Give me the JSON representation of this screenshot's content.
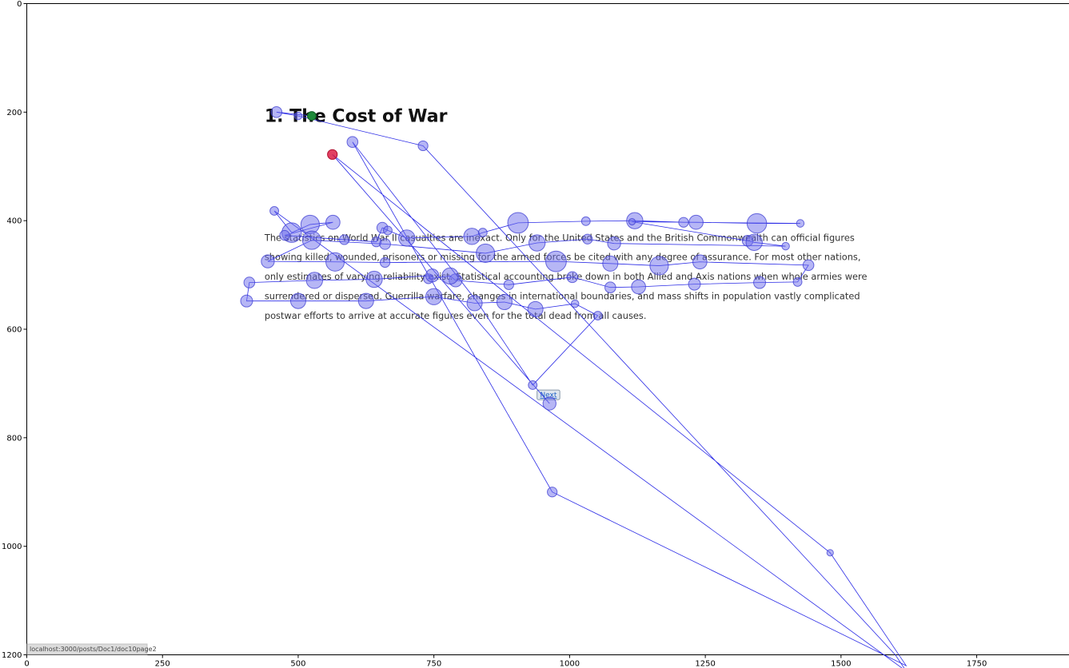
{
  "chart_data": {
    "type": "scatter",
    "title": "",
    "xlabel": "",
    "ylabel": "",
    "xlim": [
      0,
      1920
    ],
    "ylim": [
      1200,
      0
    ],
    "x_ticks": [
      0,
      250,
      500,
      750,
      1000,
      1250,
      1500,
      1750
    ],
    "y_ticks": [
      0,
      200,
      400,
      600,
      800,
      1000,
      1200
    ],
    "grid": false,
    "background_document": {
      "heading": "1. The Cost of War",
      "paragraph_lines": [
        "The statistics on World War II casualties are inexact. Only for the United States and the British Commonwealth can official figures",
        "showing killed, wounded, prisoners or missing for the armed forces be cited with any degree of assurance. For most other nations,",
        "only estimates of varying reliability exist. Statistical accounting broke down in both Allied and Axis nations when whole armies were",
        "surrendered or dispersed. Guerrilla warfare, changes in international boundaries, and mass shifts in population vastly complicated",
        "postwar efforts to arrive at accurate figures even for the total dead from all causes."
      ],
      "next_button": "Next",
      "status_url": "localhost:3000/posts/Doc1/doc10page2"
    },
    "series": [
      {
        "points": [
          {
            "x": 525,
            "y": 207,
            "r": 8
          },
          {
            "x": 460,
            "y": 200,
            "r": 10
          },
          {
            "x": 500,
            "y": 207,
            "r": 7
          },
          {
            "x": 730,
            "y": 262,
            "r": 9
          },
          {
            "x": 1600,
            "y": 1200,
            "r": 0
          },
          {
            "x": 1620,
            "y": 1230,
            "r": 0
          },
          {
            "x": 456,
            "y": 382,
            "r": 8
          },
          {
            "x": 488,
            "y": 422,
            "r": 18
          },
          {
            "x": 522,
            "y": 407,
            "r": 17
          },
          {
            "x": 564,
            "y": 403,
            "r": 13
          },
          {
            "x": 475,
            "y": 427,
            "r": 9
          },
          {
            "x": 585,
            "y": 435,
            "r": 9
          },
          {
            "x": 644,
            "y": 439,
            "r": 9
          },
          {
            "x": 655,
            "y": 413,
            "r": 10
          },
          {
            "x": 665,
            "y": 418,
            "r": 8
          },
          {
            "x": 700,
            "y": 432,
            "r": 15
          },
          {
            "x": 820,
            "y": 429,
            "r": 15
          },
          {
            "x": 840,
            "y": 422,
            "r": 8
          },
          {
            "x": 905,
            "y": 404,
            "r": 19
          },
          {
            "x": 1030,
            "y": 401,
            "r": 8
          },
          {
            "x": 1120,
            "y": 400,
            "r": 15
          },
          {
            "x": 1210,
            "y": 403,
            "r": 9
          },
          {
            "x": 1233,
            "y": 403,
            "r": 13
          },
          {
            "x": 1345,
            "y": 405,
            "r": 18
          },
          {
            "x": 1425,
            "y": 405,
            "r": 7
          },
          {
            "x": 1115,
            "y": 402,
            "r": 6
          },
          {
            "x": 1328,
            "y": 437,
            "r": 10
          },
          {
            "x": 1340,
            "y": 440,
            "r": 15
          },
          {
            "x": 1398,
            "y": 447,
            "r": 7
          },
          {
            "x": 1082,
            "y": 442,
            "r": 12
          },
          {
            "x": 1033,
            "y": 434,
            "r": 9
          },
          {
            "x": 940,
            "y": 441,
            "r": 15
          },
          {
            "x": 845,
            "y": 460,
            "r": 17
          },
          {
            "x": 660,
            "y": 443,
            "r": 10
          },
          {
            "x": 525,
            "y": 436,
            "r": 17
          },
          {
            "x": 444,
            "y": 475,
            "r": 12
          },
          {
            "x": 568,
            "y": 476,
            "r": 17
          },
          {
            "x": 660,
            "y": 477,
            "r": 9
          },
          {
            "x": 975,
            "y": 475,
            "r": 19
          },
          {
            "x": 1075,
            "y": 479,
            "r": 14
          },
          {
            "x": 1165,
            "y": 483,
            "r": 17
          },
          {
            "x": 1240,
            "y": 476,
            "r": 13
          },
          {
            "x": 1440,
            "y": 482,
            "r": 10
          },
          {
            "x": 1420,
            "y": 513,
            "r": 8
          },
          {
            "x": 1350,
            "y": 514,
            "r": 11
          },
          {
            "x": 1230,
            "y": 517,
            "r": 11
          },
          {
            "x": 1127,
            "y": 522,
            "r": 13
          },
          {
            "x": 1075,
            "y": 523,
            "r": 10
          },
          {
            "x": 1005,
            "y": 504,
            "r": 10
          },
          {
            "x": 888,
            "y": 518,
            "r": 9
          },
          {
            "x": 790,
            "y": 510,
            "r": 12
          },
          {
            "x": 780,
            "y": 502,
            "r": 15
          },
          {
            "x": 740,
            "y": 507,
            "r": 9
          },
          {
            "x": 747,
            "y": 501,
            "r": 12
          },
          {
            "x": 640,
            "y": 508,
            "r": 15
          },
          {
            "x": 530,
            "y": 510,
            "r": 15
          },
          {
            "x": 410,
            "y": 514,
            "r": 10
          },
          {
            "x": 405,
            "y": 548,
            "r": 11
          },
          {
            "x": 500,
            "y": 548,
            "r": 14
          },
          {
            "x": 625,
            "y": 548,
            "r": 14
          },
          {
            "x": 750,
            "y": 540,
            "r": 15
          },
          {
            "x": 825,
            "y": 552,
            "r": 14
          },
          {
            "x": 880,
            "y": 550,
            "r": 14
          },
          {
            "x": 937,
            "y": 563,
            "r": 14
          },
          {
            "x": 1010,
            "y": 553,
            "r": 7
          },
          {
            "x": 1052,
            "y": 575,
            "r": 8
          },
          {
            "x": 932,
            "y": 703,
            "r": 8
          },
          {
            "x": 830,
            "y": 550,
            "r": 0
          },
          {
            "x": 600,
            "y": 255,
            "r": 10
          },
          {
            "x": 968,
            "y": 900,
            "r": 9
          },
          {
            "x": 1620,
            "y": 1220,
            "r": 0
          },
          {
            "x": 1480,
            "y": 1012,
            "r": 6
          },
          {
            "x": 563,
            "y": 278,
            "r": 9
          },
          {
            "x": 963,
            "y": 737,
            "r": 12
          }
        ]
      }
    ],
    "first_fixation_index": 0,
    "last_fixation_index": 72
  }
}
